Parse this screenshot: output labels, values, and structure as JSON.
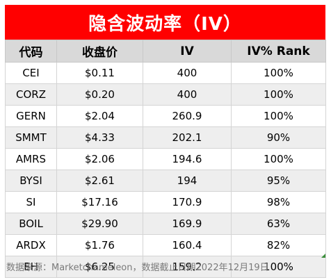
{
  "title": "隐含波动率（IV）",
  "headers": [
    "代码",
    "收盘价",
    "IV",
    "IV% Rank"
  ],
  "rows": [
    {
      "ticker": "CEI",
      "price": "$0.11",
      "iv": "400",
      "rank": "100%"
    },
    {
      "ticker": "CORZ",
      "price": "$0.20",
      "iv": "400",
      "rank": "100%"
    },
    {
      "ticker": "GERN",
      "price": "$2.04",
      "iv": "260.9",
      "rank": "100%"
    },
    {
      "ticker": "SMMT",
      "price": "$4.33",
      "iv": "202.1",
      "rank": "90%"
    },
    {
      "ticker": "AMRS",
      "price": "$2.06",
      "iv": "194.6",
      "rank": "100%"
    },
    {
      "ticker": "BYSI",
      "price": "$2.61",
      "iv": "194",
      "rank": "95%"
    },
    {
      "ticker": "SI",
      "price": "$17.16",
      "iv": "170.9",
      "rank": "98%"
    },
    {
      "ticker": "BOIL",
      "price": "$29.90",
      "iv": "169.9",
      "rank": "63%"
    },
    {
      "ticker": "ARDX",
      "price": "$1.76",
      "iv": "160.4",
      "rank": "82%"
    },
    {
      "ticker": "EH",
      "price": "$6.25",
      "iv": "159.2",
      "rank": "100%"
    }
  ],
  "footer": "数据来源：Marketchameleon，数据截止日期2022年12月19日",
  "colors": {
    "title_bg": "#ff0000",
    "header_bg": "#d9d9d9",
    "stripe": "#eeeeee"
  }
}
